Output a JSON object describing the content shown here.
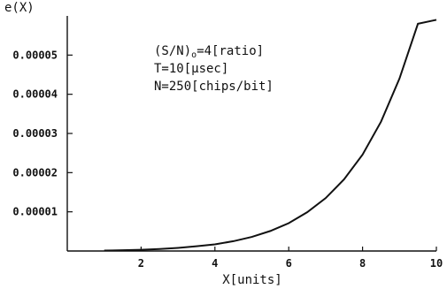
{
  "chart_data": {
    "type": "line",
    "title": "",
    "xlabel": "X[units]",
    "ylabel": "e(X)",
    "xlim": [
      0,
      10
    ],
    "ylim": [
      0,
      6e-05
    ],
    "x_ticks": [
      2,
      4,
      6,
      8,
      10
    ],
    "y_ticks": [
      1e-05,
      2e-05,
      3e-05,
      4e-05,
      5e-05
    ],
    "x_tick_labels": [
      "2",
      "4",
      "6",
      "8",
      "10"
    ],
    "y_tick_labels": [
      "0.00001",
      "0.00002",
      "0.00003",
      "0.00004",
      "0.00005"
    ],
    "grid": false,
    "annotations": [
      {
        "parts": [
          {
            "text": "(S/N)"
          },
          {
            "text": "o",
            "sub": true
          },
          {
            "text": "=4[ratio]"
          }
        ]
      },
      {
        "text": "T=10[μsec]"
      },
      {
        "text": "N=250[chips/bit]"
      }
    ],
    "series": [
      {
        "x": [
          1,
          1.5,
          2,
          2.5,
          3,
          3.5,
          4,
          4.5,
          5,
          5.5,
          6,
          6.5,
          7,
          7.5,
          8,
          8.5,
          9,
          9.5,
          10
        ],
        "y": [
          1e-07,
          2e-07,
          3e-07,
          5e-07,
          8e-07,
          1.2e-06,
          1.7e-06,
          2.5e-06,
          3.6e-06,
          5.1e-06,
          7.1e-06,
          9.9e-06,
          1.35e-05,
          1.83e-05,
          2.46e-05,
          3.3e-05,
          4.4e-05,
          5.8e-05,
          5.9e-05
        ],
        "color": "#111111"
      }
    ]
  }
}
